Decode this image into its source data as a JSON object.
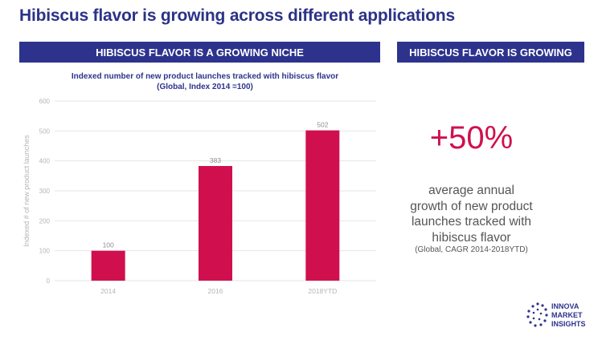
{
  "page": {
    "title": "Hibiscus flavor is growing across different applications"
  },
  "left_banner": "HIBISCUS FLAVOR IS A GROWING NICHE",
  "right_banner": "HIBISCUS FLAVOR IS GROWING",
  "chart_title_line1": "Indexed number of new product launches tracked with hibiscus flavor",
  "chart_title_line2": "(Global, Index 2014 =100)",
  "chart_data": {
    "type": "bar",
    "categories": [
      "2014",
      "2016",
      "2018YTD"
    ],
    "values": [
      100,
      383,
      502
    ],
    "data_labels": [
      "100",
      "383",
      "502"
    ],
    "ylabel": "Indexed # of new product launches",
    "ylim": [
      0,
      600
    ],
    "yticks": [
      "0",
      "100",
      "200",
      "300",
      "400",
      "500",
      "600"
    ],
    "grid": true,
    "bar_color": "#d0104e"
  },
  "stat": {
    "value": "+50%",
    "desc_lines": [
      "average annual",
      "growth of new product",
      "launches tracked with",
      "hibiscus flavor"
    ],
    "note": "(Global, CAGR 2014-2018YTD)"
  },
  "logo": {
    "lines": [
      "INNOVA",
      "MARKET",
      "INSIGHTS"
    ],
    "icon": "dotted-circle-icon"
  },
  "colors": {
    "brand_navy": "#2d338d",
    "accent": "#d0104e"
  }
}
